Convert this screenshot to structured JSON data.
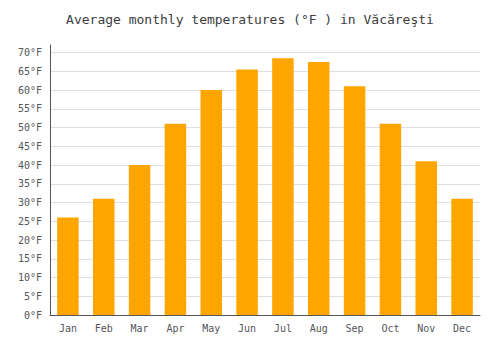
{
  "chart_data": {
    "type": "bar",
    "title": "Average monthly temperatures (°F ) in Văcăreşti",
    "categories": [
      "Jan",
      "Feb",
      "Mar",
      "Apr",
      "May",
      "Jun",
      "Jul",
      "Aug",
      "Sep",
      "Oct",
      "Nov",
      "Dec"
    ],
    "values": [
      26.0,
      31.0,
      40.0,
      51.0,
      60.0,
      65.5,
      68.5,
      67.5,
      61.0,
      51.0,
      41.0,
      31.0
    ],
    "color": "#FFA500",
    "ylim": [
      0,
      72
    ],
    "yticks": [
      {
        "value": 0,
        "label": "0°F"
      },
      {
        "value": 5,
        "label": "5°F"
      },
      {
        "value": 10,
        "label": "10°F"
      },
      {
        "value": 15,
        "label": "15°F"
      },
      {
        "value": 20,
        "label": "20°F"
      },
      {
        "value": 25,
        "label": "25°F"
      },
      {
        "value": 30,
        "label": "30°F"
      },
      {
        "value": 35,
        "label": "35°F"
      },
      {
        "value": 40,
        "label": "40°F"
      },
      {
        "value": 45,
        "label": "45°F"
      },
      {
        "value": 50,
        "label": "50°F"
      },
      {
        "value": 55,
        "label": "55°F"
      },
      {
        "value": 60,
        "label": "60°F"
      },
      {
        "value": 65,
        "label": "65°F"
      },
      {
        "value": 70,
        "label": "70°F"
      }
    ],
    "grid": true
  }
}
